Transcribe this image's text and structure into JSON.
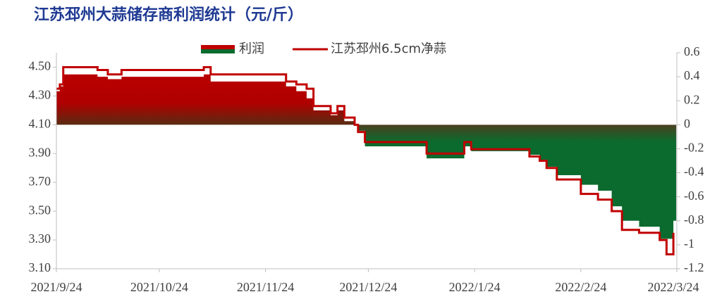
{
  "chart_data": {
    "type": "area_line",
    "title": "江苏邳州大蒜储存商利润统计（元/斤）",
    "x": [
      "2021-09-24",
      "2021-09-25",
      "2021-09-26",
      "2021-10-04",
      "2021-10-06",
      "2021-10-09",
      "2021-10-13",
      "2021-11-04",
      "2021-11-06",
      "2021-11-08",
      "2021-11-28",
      "2021-11-30",
      "2021-12-03",
      "2021-12-06",
      "2021-12-08",
      "2021-12-13",
      "2021-12-15",
      "2021-12-17",
      "2021-12-20",
      "2021-12-21",
      "2021-12-23",
      "2022-01-09",
      "2022-01-10",
      "2022-01-20",
      "2022-01-21",
      "2022-01-23",
      "2022-02-09",
      "2022-02-12",
      "2022-02-14",
      "2022-02-17",
      "2022-02-24",
      "2022-03-01",
      "2022-03-05",
      "2022-03-08",
      "2022-03-13",
      "2022-03-19",
      "2022-03-21",
      "2022-03-23"
    ],
    "series": [
      {
        "name": "利润",
        "type": "area",
        "axis": "y2",
        "color": "#c00000",
        "negative_color": "#0b6b2e",
        "values": [
          0.28,
          0.32,
          0.42,
          0.42,
          0.4,
          0.38,
          0.4,
          0.4,
          0.42,
          0.36,
          0.36,
          0.32,
          0.28,
          0.22,
          0.12,
          0.08,
          0.12,
          0.03,
          0,
          -0.05,
          -0.18,
          -0.18,
          -0.28,
          -0.28,
          -0.18,
          -0.22,
          -0.25,
          -0.3,
          -0.35,
          -0.42,
          -0.5,
          -0.55,
          -0.68,
          -0.8,
          -0.85,
          -0.95,
          -0.95,
          -0.8
        ]
      },
      {
        "name": "江苏邳州6.5cm净蒜",
        "type": "line",
        "axis": "y",
        "color": "#c00000",
        "values": [
          4.35,
          4.38,
          4.5,
          4.5,
          4.48,
          4.45,
          4.48,
          4.48,
          4.5,
          4.45,
          4.45,
          4.4,
          4.38,
          4.35,
          4.23,
          4.18,
          4.23,
          4.15,
          4.1,
          4.05,
          3.98,
          3.98,
          3.9,
          3.9,
          3.98,
          3.93,
          3.88,
          3.85,
          3.8,
          3.72,
          3.62,
          3.58,
          3.5,
          3.37,
          3.35,
          3.3,
          3.2,
          3.35
        ]
      }
    ],
    "xlim": [
      "2021-09-24",
      "2022-03-24"
    ],
    "xticks": [
      {
        "value": "2021-09-24",
        "label": "2021/9/24"
      },
      {
        "value": "2021-10-24",
        "label": "2021/10/24"
      },
      {
        "value": "2021-11-24",
        "label": "2021/11/24"
      },
      {
        "value": "2021-12-24",
        "label": "2021/12/24"
      },
      {
        "value": "2022-01-24",
        "label": "2022/1/24"
      },
      {
        "value": "2022-02-24",
        "label": "2022/2/24"
      },
      {
        "value": "2022-03-24",
        "label": "2022/3/24"
      }
    ],
    "ylim": [
      3.1,
      4.6
    ],
    "yticks": [
      {
        "value": 3.1,
        "label": "3.10"
      },
      {
        "value": 3.3,
        "label": "3.30"
      },
      {
        "value": 3.5,
        "label": "3.50"
      },
      {
        "value": 3.7,
        "label": "3.70"
      },
      {
        "value": 3.9,
        "label": "3.90"
      },
      {
        "value": 4.1,
        "label": "4.10"
      },
      {
        "value": 4.3,
        "label": "4.30"
      },
      {
        "value": 4.5,
        "label": "4.50"
      }
    ],
    "y2lim": [
      -1.2,
      0.6
    ],
    "y2ticks": [
      -1.2,
      -1,
      -0.8,
      -0.6,
      -0.4,
      -0.2,
      0,
      0.2,
      0.4,
      0.6
    ],
    "legend": "top",
    "grid": false
  }
}
